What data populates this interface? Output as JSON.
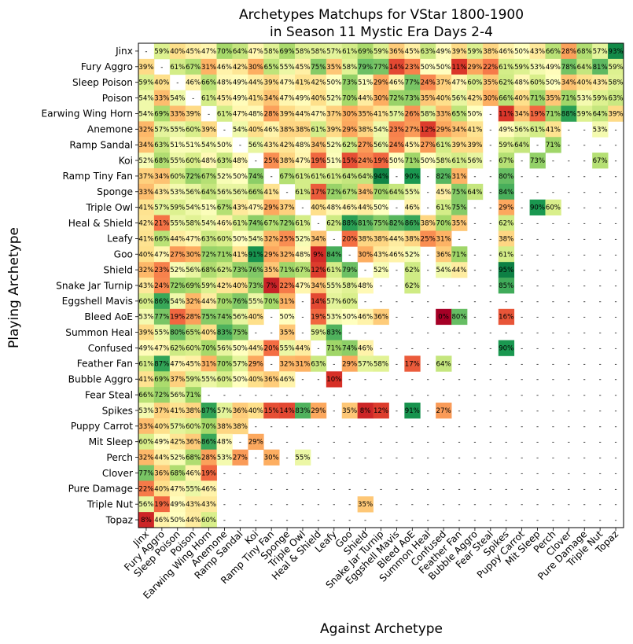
{
  "chart_data": {
    "type": "heatmap",
    "title_line1": "Archetypes Matchups for VStar 1800-1900",
    "title_line2": "in Season 11 Mystic Era Days 2-4",
    "xlabel": "Against Archetype",
    "ylabel": "Playing Archetype",
    "color_scale": {
      "low": "#a50026",
      "mid": "#ffffbf",
      "high": "#006837",
      "min": 0,
      "max": 100
    },
    "empty_symbol": "-",
    "categories": [
      "Jinx",
      "Fury Aggro",
      "Sleep Poison",
      "Poison",
      "Earwing Wing Horn",
      "Anemone",
      "Ramp Sandal",
      "Koi",
      "Ramp Tiny Fan",
      "Sponge",
      "Triple Owl",
      "Heal & Shield",
      "Leafy",
      "Goo",
      "Shield",
      "Snake Jar Turnip",
      "Eggshell Mavis",
      "Bleed AoE",
      "Summon Heal",
      "Confused",
      "Feather Fan",
      "Bubble Aggro",
      "Fear Steal",
      "Spikes",
      "Puppy Carrot",
      "Mit Sleep",
      "Perch",
      "Clover",
      "Pure Damage",
      "Triple Nut",
      "Topaz"
    ],
    "values": [
      [
        null,
        59,
        40,
        45,
        47,
        70,
        64,
        47,
        58,
        69,
        58,
        58,
        57,
        61,
        69,
        59,
        36,
        45,
        63,
        49,
        39,
        59,
        38,
        46,
        50,
        43,
        66,
        28,
        68,
        57,
        93
      ],
      [
        39,
        null,
        61,
        67,
        31,
        46,
        42,
        30,
        65,
        55,
        45,
        75,
        35,
        58,
        79,
        77,
        14,
        23,
        50,
        50,
        11,
        29,
        22,
        61,
        59,
        53,
        49,
        78,
        64,
        81,
        59
      ],
      [
        59,
        40,
        null,
        46,
        66,
        48,
        49,
        44,
        39,
        47,
        41,
        42,
        50,
        73,
        51,
        29,
        46,
        77,
        24,
        37,
        47,
        60,
        35,
        62,
        48,
        60,
        50,
        34,
        40,
        43,
        58
      ],
      [
        54,
        33,
        54,
        null,
        61,
        45,
        49,
        41,
        34,
        47,
        49,
        40,
        52,
        70,
        44,
        30,
        72,
        73,
        35,
        40,
        56,
        42,
        30,
        66,
        40,
        71,
        35,
        71,
        53,
        59,
        63
      ],
      [
        54,
        69,
        33,
        39,
        null,
        61,
        47,
        48,
        28,
        39,
        44,
        47,
        37,
        30,
        35,
        41,
        57,
        26,
        58,
        33,
        65,
        50,
        null,
        11,
        34,
        19,
        71,
        88,
        59,
        64,
        39
      ],
      [
        32,
        57,
        55,
        60,
        39,
        null,
        54,
        40,
        46,
        38,
        38,
        61,
        39,
        29,
        38,
        54,
        23,
        27,
        12,
        29,
        34,
        41,
        null,
        49,
        56,
        61,
        41,
        null,
        null,
        53,
        null
      ],
      [
        34,
        63,
        51,
        51,
        54,
        50,
        null,
        56,
        43,
        42,
        48,
        34,
        52,
        62,
        27,
        56,
        24,
        45,
        27,
        61,
        39,
        39,
        null,
        59,
        64,
        null,
        71,
        null,
        null,
        null,
        null
      ],
      [
        52,
        68,
        55,
        60,
        48,
        63,
        48,
        null,
        25,
        38,
        47,
        19,
        51,
        15,
        24,
        19,
        50,
        71,
        50,
        58,
        61,
        56,
        null,
        67,
        null,
        73,
        null,
        null,
        null,
        67,
        null
      ],
      [
        37,
        34,
        60,
        72,
        67,
        52,
        50,
        74,
        null,
        67,
        61,
        61,
        61,
        64,
        64,
        94,
        null,
        90,
        null,
        82,
        31,
        null,
        null,
        80,
        null,
        null,
        null,
        null,
        null,
        null,
        null
      ],
      [
        33,
        43,
        53,
        56,
        64,
        56,
        56,
        66,
        41,
        null,
        61,
        17,
        72,
        67,
        34,
        70,
        64,
        55,
        null,
        45,
        75,
        64,
        null,
        84,
        null,
        null,
        null,
        null,
        null,
        null,
        null
      ],
      [
        41,
        57,
        59,
        54,
        51,
        67,
        43,
        47,
        29,
        37,
        null,
        40,
        48,
        46,
        44,
        50,
        null,
        46,
        null,
        61,
        75,
        null,
        null,
        29,
        null,
        90,
        60,
        null,
        null,
        null,
        null
      ],
      [
        42,
        21,
        55,
        58,
        54,
        46,
        61,
        74,
        67,
        72,
        61,
        null,
        62,
        88,
        81,
        75,
        82,
        86,
        38,
        70,
        35,
        null,
        null,
        62,
        null,
        null,
        null,
        null,
        null,
        null,
        null
      ],
      [
        41,
        66,
        44,
        47,
        63,
        60,
        50,
        54,
        32,
        25,
        52,
        34,
        null,
        20,
        38,
        38,
        44,
        38,
        25,
        31,
        null,
        null,
        null,
        38,
        null,
        null,
        null,
        null,
        null,
        null,
        null
      ],
      [
        40,
        47,
        27,
        30,
        72,
        71,
        41,
        91,
        29,
        32,
        48,
        9,
        84,
        null,
        30,
        43,
        46,
        52,
        null,
        36,
        71,
        null,
        null,
        61,
        null,
        null,
        null,
        null,
        null,
        null,
        null
      ],
      [
        32,
        23,
        52,
        56,
        68,
        62,
        73,
        76,
        35,
        71,
        67,
        12,
        61,
        79,
        null,
        52,
        null,
        62,
        null,
        54,
        44,
        null,
        null,
        95,
        null,
        null,
        null,
        null,
        null,
        null,
        null
      ],
      [
        43,
        24,
        72,
        69,
        59,
        42,
        40,
        73,
        7,
        22,
        47,
        34,
        55,
        58,
        48,
        null,
        null,
        62,
        null,
        null,
        null,
        null,
        null,
        85,
        null,
        null,
        null,
        null,
        null,
        null,
        null
      ],
      [
        60,
        86,
        54,
        32,
        44,
        70,
        76,
        55,
        70,
        31,
        null,
        14,
        57,
        60,
        null,
        null,
        null,
        null,
        null,
        null,
        null,
        null,
        null,
        null,
        null,
        null,
        null,
        null,
        null,
        null,
        null
      ],
      [
        53,
        77,
        19,
        28,
        75,
        74,
        56,
        40,
        null,
        50,
        null,
        19,
        53,
        50,
        46,
        36,
        null,
        null,
        null,
        0,
        80,
        null,
        null,
        16,
        null,
        null,
        null,
        null,
        null,
        null,
        null
      ],
      [
        39,
        55,
        80,
        65,
        40,
        83,
        75,
        null,
        null,
        35,
        null,
        59,
        83,
        null,
        null,
        null,
        null,
        null,
        null,
        null,
        null,
        null,
        null,
        null,
        null,
        null,
        null,
        null,
        null,
        null,
        null
      ],
      [
        49,
        47,
        62,
        60,
        70,
        56,
        50,
        44,
        20,
        55,
        44,
        null,
        71,
        74,
        46,
        null,
        null,
        null,
        null,
        null,
        null,
        null,
        null,
        90,
        null,
        null,
        null,
        null,
        null,
        null,
        null
      ],
      [
        61,
        87,
        47,
        45,
        31,
        70,
        57,
        29,
        null,
        32,
        31,
        63,
        null,
        29,
        57,
        58,
        null,
        17,
        null,
        64,
        null,
        null,
        null,
        null,
        null,
        null,
        null,
        null,
        null,
        null,
        null
      ],
      [
        41,
        69,
        37,
        59,
        55,
        60,
        50,
        40,
        36,
        46,
        null,
        null,
        10,
        null,
        null,
        null,
        null,
        null,
        null,
        null,
        null,
        null,
        null,
        null,
        null,
        null,
        null,
        null,
        null,
        null,
        null
      ],
      [
        66,
        72,
        56,
        71,
        null,
        null,
        null,
        null,
        null,
        null,
        null,
        null,
        null,
        null,
        null,
        null,
        null,
        null,
        null,
        null,
        null,
        null,
        null,
        null,
        null,
        null,
        null,
        null,
        null,
        null,
        null
      ],
      [
        53,
        37,
        41,
        38,
        87,
        57,
        36,
        40,
        15,
        14,
        83,
        29,
        null,
        35,
        8,
        12,
        null,
        91,
        null,
        27,
        null,
        null,
        null,
        null,
        null,
        null,
        null,
        null,
        null,
        null,
        null
      ],
      [
        33,
        40,
        57,
        60,
        70,
        38,
        38,
        null,
        null,
        null,
        null,
        null,
        null,
        null,
        null,
        null,
        null,
        null,
        null,
        null,
        null,
        null,
        null,
        null,
        null,
        null,
        null,
        null,
        null,
        null,
        null
      ],
      [
        60,
        49,
        42,
        36,
        86,
        48,
        null,
        29,
        null,
        null,
        null,
        null,
        null,
        null,
        null,
        null,
        null,
        null,
        null,
        null,
        null,
        null,
        null,
        null,
        null,
        null,
        null,
        null,
        null,
        null,
        null
      ],
      [
        32,
        44,
        52,
        68,
        28,
        53,
        27,
        null,
        30,
        null,
        55,
        null,
        null,
        null,
        null,
        null,
        null,
        null,
        null,
        null,
        null,
        null,
        null,
        null,
        null,
        null,
        null,
        null,
        null,
        null,
        null
      ],
      [
        77,
        36,
        68,
        46,
        19,
        null,
        null,
        null,
        null,
        null,
        null,
        null,
        null,
        null,
        null,
        null,
        null,
        null,
        null,
        null,
        null,
        null,
        null,
        null,
        null,
        null,
        null,
        null,
        null,
        null,
        null
      ],
      [
        22,
        40,
        47,
        55,
        46,
        null,
        null,
        null,
        null,
        null,
        null,
        null,
        null,
        null,
        null,
        null,
        null,
        null,
        null,
        null,
        null,
        null,
        null,
        null,
        null,
        null,
        null,
        null,
        null,
        null,
        null
      ],
      [
        56,
        19,
        49,
        43,
        43,
        null,
        null,
        null,
        null,
        null,
        null,
        null,
        null,
        null,
        35,
        null,
        null,
        null,
        null,
        null,
        null,
        null,
        null,
        null,
        null,
        null,
        null,
        null,
        null,
        null,
        null
      ],
      [
        8,
        46,
        50,
        44,
        60,
        null,
        null,
        null,
        null,
        null,
        null,
        null,
        null,
        null,
        null,
        null,
        null,
        null,
        null,
        null,
        null,
        null,
        null,
        null,
        null,
        null,
        null,
        null,
        null,
        null,
        null
      ]
    ]
  }
}
